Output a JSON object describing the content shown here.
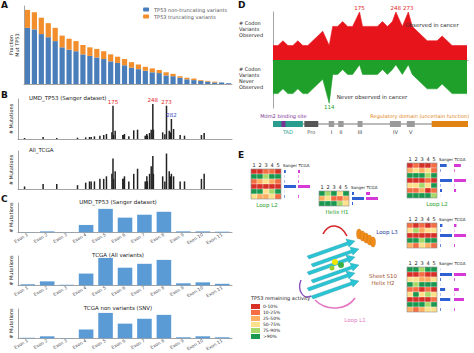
{
  "chart_data": [
    {
      "panel": "A",
      "type": "bar",
      "stacked": true,
      "y_label": "Fraction\nMut TP53",
      "tick_labels": false,
      "legend": "top-right",
      "categories": [
        null,
        null,
        null,
        null,
        null,
        null,
        null,
        null,
        null,
        null,
        null,
        null,
        null,
        null,
        null,
        null,
        null,
        null,
        null,
        null,
        null,
        null,
        null,
        null,
        null,
        null,
        null,
        null,
        null,
        null
      ],
      "ylim": [
        0,
        1
      ],
      "series": [
        {
          "name": "TP53 non-truncating variants",
          "color": "#4a7ebb",
          "values": [
            0.72,
            0.7,
            0.64,
            0.6,
            0.55,
            0.47,
            0.44,
            0.42,
            0.38,
            0.36,
            0.34,
            0.32,
            0.29,
            0.27,
            0.24,
            0.21,
            0.19,
            0.17,
            0.15,
            0.14,
            0.11,
            0.1,
            0.08,
            0.06,
            0.05,
            0.04,
            0.03,
            0.02,
            0.02,
            0.01
          ]
        },
        {
          "name": "TP53 truncating variants",
          "color": "#f28e2b",
          "values": [
            0.23,
            0.22,
            0.21,
            0.18,
            0.17,
            0.15,
            0.14,
            0.13,
            0.12,
            0.11,
            0.11,
            0.1,
            0.09,
            0.08,
            0.08,
            0.07,
            0.06,
            0.05,
            0.05,
            0.04,
            0.04,
            0.03,
            0.02,
            0.02,
            0.02,
            0.01,
            0.01,
            0.01,
            0,
            0
          ]
        }
      ]
    },
    {
      "panel": "B",
      "type": "bar",
      "title": "UMD_TP53 (Sanger dataset)",
      "y_label": "# Mutations",
      "tick_labels": false,
      "color": "#222222",
      "x": [
        13,
        47,
        72,
        110,
        125,
        132,
        135,
        141,
        151,
        158,
        163,
        173,
        175,
        176,
        179,
        193,
        195,
        196,
        204,
        213,
        220,
        234,
        236,
        237,
        238,
        242,
        245,
        248,
        249,
        266,
        270,
        273,
        278,
        280,
        282,
        286,
        298,
        306,
        337,
        342
      ],
      "values": [
        30,
        60,
        30,
        40,
        50,
        60,
        60,
        80,
        100,
        120,
        150,
        200,
        1000,
        120,
        250,
        120,
        120,
        150,
        80,
        260,
        280,
        100,
        100,
        150,
        100,
        180,
        280,
        1050,
        280,
        200,
        140,
        1000,
        250,
        200,
        600,
        300,
        120,
        100,
        120,
        180
      ],
      "peaks": [
        {
          "x": 175,
          "label": "175",
          "color": "#e41a1c"
        },
        {
          "x": 248,
          "label": "248",
          "color": "#e41a1c"
        },
        {
          "x": 273,
          "label": "273",
          "color": "#e41a1c"
        },
        {
          "x": 282,
          "label": "282",
          "color": "#3b4cc0"
        }
      ],
      "xlim": [
        1,
        393
      ],
      "ylim": [
        0,
        1200
      ]
    },
    {
      "type": "bar",
      "title": "All_TCGA",
      "y_label": "# Mutations",
      "tick_labels": false,
      "color": "#222222",
      "x": [
        13,
        47,
        72,
        110,
        125,
        132,
        135,
        141,
        151,
        158,
        163,
        173,
        175,
        176,
        179,
        193,
        195,
        196,
        204,
        213,
        220,
        234,
        236,
        237,
        238,
        242,
        245,
        248,
        249,
        266,
        270,
        273,
        278,
        280,
        282,
        286,
        298,
        306,
        337,
        342
      ],
      "values": [
        10,
        20,
        20,
        15,
        25,
        30,
        30,
        30,
        40,
        40,
        50,
        60,
        120,
        40,
        70,
        40,
        40,
        50,
        30,
        60,
        80,
        30,
        30,
        50,
        30,
        60,
        90,
        130,
        60,
        50,
        30,
        140,
        70,
        50,
        60,
        50,
        30,
        30,
        40,
        60
      ],
      "xlim": [
        1,
        393
      ],
      "ylim": [
        0,
        150
      ]
    },
    {
      "panel": "C",
      "type": "bar",
      "title": "UMD_TP53 (Sanger dataset)",
      "y_label": "# Mutations",
      "tick_labels": "x",
      "color": "#5b9bd5",
      "categories": [
        "Exon 1",
        "Exon 2",
        "Exon 3",
        "Exon 4",
        "Exon 5",
        "Exon 6",
        "Exon 7",
        "Exon 8",
        "Exon 9",
        "Exon 10",
        "Exon 11"
      ],
      "values": [
        50,
        300,
        50,
        2500,
        8000,
        5000,
        6000,
        7000,
        300,
        300,
        200
      ],
      "ylim": [
        0,
        10000
      ]
    },
    {
      "type": "bar",
      "title": "TCGA (All variants)",
      "y_label": "# Mutations",
      "tick_labels": "x",
      "color": "#5b9bd5",
      "categories": [
        "Exon 1",
        "Exon 2",
        "Exon 3",
        "Exon 4",
        "Exon 5",
        "Exon 6",
        "Exon 7",
        "Exon 8",
        "Exon 9",
        "Exon 10",
        "Exon 11"
      ],
      "values": [
        10,
        40,
        5,
        120,
        280,
        180,
        220,
        260,
        20,
        30,
        15
      ],
      "ylim": [
        0,
        300
      ]
    },
    {
      "type": "bar",
      "title": "TCGA non variants (SNV)",
      "y_label": "# Mutations",
      "tick_labels": "x",
      "color": "#5b9bd5",
      "categories": [
        "Exon 1",
        "Exon 2",
        "Exon 3",
        "Exon 4",
        "Exon 5",
        "Exon 6",
        "Exon 7",
        "Exon 8",
        "Exon 9",
        "Exon 10",
        "Exon 11"
      ],
      "values": [
        5,
        20,
        3,
        90,
        260,
        150,
        200,
        240,
        10,
        20,
        10
      ],
      "ylim": [
        0,
        300
      ]
    },
    {
      "panel": "D",
      "type": "area",
      "tick_labels": false,
      "y_labels": [
        "# Codon\nVariants\nObserved",
        "# Codon\nVariants\nNever\nObserved"
      ],
      "annotations": [
        "Observed in cancer",
        "Never observed in cancer"
      ],
      "x": [
        1,
        11,
        21,
        31,
        41,
        51,
        61,
        71,
        81,
        91,
        101,
        114,
        121,
        131,
        141,
        151,
        161,
        175,
        181,
        191,
        201,
        211,
        221,
        231,
        241,
        248,
        261,
        273,
        281,
        291,
        301,
        311,
        321,
        331,
        341,
        351,
        361,
        371,
        381,
        391
      ],
      "xlim": [
        1,
        393
      ],
      "ylim": [
        -10,
        10
      ],
      "series": [
        {
          "color": "#e8141c",
          "values": [
            3,
            3,
            4,
            3,
            3,
            4,
            3,
            3,
            4,
            5,
            6,
            3,
            7,
            7,
            8,
            7,
            7,
            10,
            7,
            7,
            7,
            7,
            8,
            7,
            8,
            10,
            7,
            10,
            7,
            6,
            5,
            4,
            4,
            4,
            5,
            4,
            3,
            3,
            3,
            3
          ],
          "peaks": [
            {
              "x": 175,
              "label": "175",
              "color": "#e41a1c"
            },
            {
              "x": 248,
              "label": "248",
              "color": "#e41a1c"
            },
            {
              "x": 273,
              "label": "273",
              "color": "#e41a1c"
            }
          ]
        },
        {
          "color": "#1fa02a",
          "values": [
            -7,
            -7,
            -6,
            -7,
            -7,
            -6,
            -7,
            -7,
            -6,
            -5,
            -4,
            -9,
            -3,
            -3,
            -2,
            -3,
            -3,
            -1,
            -3,
            -3,
            -3,
            -3,
            -2,
            -3,
            -2,
            -1,
            -3,
            -1,
            -3,
            -4,
            -5,
            -6,
            -6,
            -6,
            -5,
            -6,
            -7,
            -7,
            -7,
            -7
          ],
          "peaks": [
            {
              "x": 114,
              "label": "114",
              "color": "#1fa02a"
            }
          ]
        }
      ],
      "domains": [
        {
          "label": "TAD",
          "start": 1,
          "end": 61,
          "color": "#2a9d8f"
        },
        {
          "label": "Mdm2 binding site",
          "start": 18,
          "end": 26,
          "color": "#7b3294"
        },
        {
          "label": "Pro",
          "start": 64,
          "end": 92,
          "color": "#555555"
        },
        {
          "label": "Regulatory domain (uncertain function)",
          "start": 320,
          "end": 393,
          "color": "#e08214"
        }
      ],
      "boxes": [
        {
          "label": "I",
          "start": 113,
          "end": 124
        },
        {
          "label": "II",
          "start": 132,
          "end": 143
        },
        {
          "label": "III",
          "start": 171,
          "end": 181
        },
        {
          "label": "IV",
          "start": 236,
          "end": 258
        },
        {
          "label": "V",
          "start": 270,
          "end": 286
        }
      ]
    }
  ],
  "figure_e": {
    "panel": "E",
    "columns": [
      1,
      2,
      3,
      4,
      5
    ],
    "column_headers": [
      "Sanger",
      "TCGA"
    ],
    "blocks": [
      {
        "label": "Loop L2",
        "color": "#2ca02c",
        "rows": [
          [
            0,
            0,
            10,
            20,
            0
          ],
          [
            100,
            90,
            80,
            100,
            95
          ],
          [
            20,
            40,
            60,
            30,
            10
          ],
          [
            0,
            0,
            0,
            5,
            0
          ],
          [
            90,
            100,
            70,
            80,
            100
          ],
          [
            50,
            30,
            40,
            60,
            20
          ]
        ],
        "sanger": [
          120,
          15,
          30,
          800,
          10,
          40
        ],
        "tcga": [
          5,
          1,
          2,
          30,
          0,
          2
        ]
      },
      {
        "label": "Helix H1",
        "color": "#2ca02c",
        "rows": [
          [
            100,
            80,
            90,
            60,
            100
          ],
          [
            30,
            50,
            20,
            10,
            40
          ],
          [
            90,
            100,
            100,
            80,
            70
          ]
        ],
        "sanger": [
          10,
          60,
          5
        ],
        "tcga": [
          1,
          3,
          0
        ]
      },
      {
        "label": "Loop L2",
        "color": "#2ca02c",
        "rows": [
          [
            0,
            10,
            0,
            0,
            20
          ],
          [
            40,
            60,
            30,
            50,
            20
          ],
          [
            100,
            90,
            100,
            80,
            100
          ],
          [
            0,
            0,
            0,
            10,
            0
          ],
          [
            70,
            50,
            80,
            60,
            90
          ],
          [
            20,
            10,
            30,
            0,
            10
          ],
          [
            100,
            100,
            90,
            100,
            80
          ]
        ],
        "sanger": [
          500,
          40,
          5,
          900,
          30,
          150,
          8
        ],
        "tcga": [
          20,
          2,
          0,
          35,
          1,
          6,
          0
        ]
      },
      {
        "label": "Loop L3",
        "color": "#1f3d99",
        "rows": [
          [
            10,
            0,
            20,
            0,
            10
          ],
          [
            60,
            80,
            40,
            70,
            50
          ],
          [
            0,
            0,
            0,
            0,
            5
          ],
          [
            90,
            100,
            80,
            100,
            90
          ],
          [
            30,
            20,
            50,
            40,
            10
          ]
        ],
        "sanger": [
          200,
          30,
          1000,
          10,
          60
        ],
        "tcga": [
          8,
          1,
          40,
          0,
          3
        ]
      },
      {
        "label": "Sheet S10\nHelix H2",
        "color": "#a0522d",
        "rows": [
          [
            100,
            90,
            80,
            100,
            100
          ],
          [
            0,
            0,
            10,
            0,
            0
          ],
          [
            50,
            60,
            40,
            30,
            70
          ],
          [
            90,
            80,
            100,
            90,
            100
          ],
          [
            10,
            20,
            0,
            10,
            0
          ],
          [
            70,
            90,
            60,
            80,
            50
          ],
          [
            0,
            5,
            0,
            0,
            10
          ],
          [
            100,
            100,
            90,
            80,
            100
          ],
          [
            40,
            20,
            30,
            50,
            60
          ]
        ],
        "sanger": [
          10,
          700,
          50,
          8,
          300,
          20,
          600,
          5,
          40
        ],
        "tcga": [
          0,
          30,
          2,
          0,
          12,
          1,
          25,
          0,
          2
        ]
      }
    ],
    "extra_labels": [
      {
        "text": "Loop L1",
        "color": "#e377c2"
      }
    ],
    "legend_title": "TP53 remaining activity",
    "activity_scale": [
      {
        "label": "0-10%",
        "min": 0,
        "max": 10,
        "color": "#d73027"
      },
      {
        "label": "10-25%",
        "min": 10,
        "max": 25,
        "color": "#f46d43"
      },
      {
        "label": "25-50%",
        "min": 25,
        "max": 50,
        "color": "#fdae61"
      },
      {
        "label": "50-75%",
        "min": 50,
        "max": 75,
        "color": "#fee08b"
      },
      {
        "label": "75-90%",
        "min": 75,
        "max": 90,
        "color": "#a6d96a"
      },
      {
        "label": ">90%",
        "min": 90,
        "max": null,
        "color": "#1a9850"
      }
    ]
  }
}
